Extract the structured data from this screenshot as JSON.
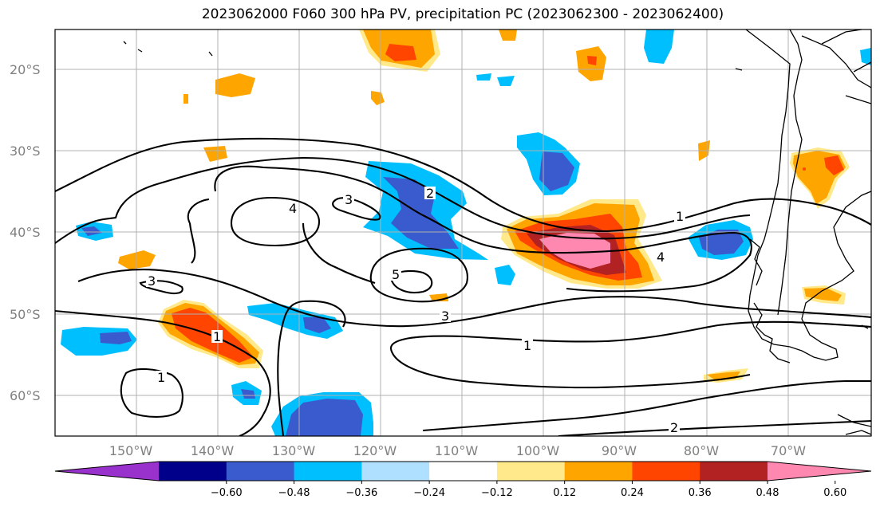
{
  "title": "2023062000 F060 300 hPa PV, precipitation PC (2023062300 - 2023062400)",
  "lat_labels": [
    "20°S",
    "30°S",
    "40°S",
    "50°S",
    "60°S"
  ],
  "lon_labels": [
    "150°W",
    "140°W",
    "130°W",
    "120°W",
    "110°W",
    "100°W",
    "90°W",
    "80°W",
    "70°W"
  ],
  "colorbar": {
    "ticks": [
      "−0.60",
      "−0.48",
      "−0.36",
      "−0.24",
      "−0.12",
      "0.12",
      "0.24",
      "0.36",
      "0.48",
      "0.60"
    ],
    "colors": [
      "#9932CC",
      "#00008B",
      "#3A5BCE",
      "#00BFFF",
      "#B0E0FF",
      "#FFFFFF",
      "#FFE98A",
      "#FFA500",
      "#FF4500",
      "#B22222",
      "#FF88B0"
    ]
  },
  "pv_contour_labels": [
    "1",
    "2",
    "3",
    "4",
    "5"
  ],
  "contour_label_positions": [
    "4",
    "3",
    "2",
    "1",
    "3",
    "4",
    "5",
    "3",
    "1",
    "1",
    "1",
    "2"
  ]
}
